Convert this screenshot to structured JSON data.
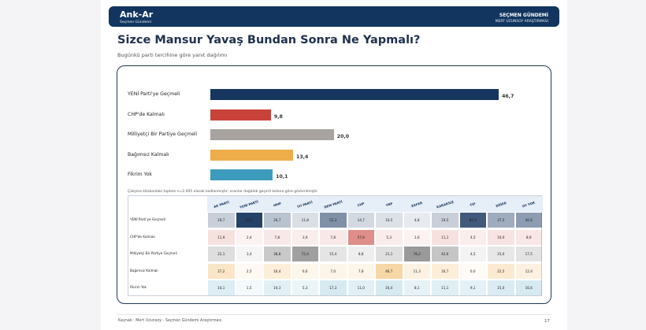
{
  "header": {
    "brand": "Ank-Ar",
    "brand_sub": "Seçmen Gündemi",
    "right_title": "SEÇMEN GÜNDEMİ",
    "right_sub": "MERT UZUNSOY ARAŞTIRMASI"
  },
  "title": "Sizce Mansur Yavaş Bundan Sonra Ne Yapmalı?",
  "subtitle": "Bugünkü parti tercihine göre yanıt dağılımı",
  "note": "Çalışma kitabındaki toplam n=2.005 olarak kodlanmıştır; oranlar dağıtıldı geçerli kolona göre gösterilmiştir.",
  "footer": {
    "source": "Kaynak : Mert Uzunsoy - Seçmen Gündemi Araştırması",
    "page": "17"
  },
  "colors": {
    "header": "#123560",
    "bar_yeni": "#17365f",
    "bar_chp": "#c9423a",
    "bar_milliyetci": "#a8a39e",
    "bar_bagimsiz": "#efad4a",
    "bar_fikrim": "#3d9bbd"
  },
  "chart_data": [
    {
      "type": "bar",
      "orientation": "horizontal",
      "categories": [
        "YENİ Parti'ye Geçmeli",
        "CHP'de Kalmalı",
        "Milliyetçi Bir Partiye Geçmeli",
        "Bağımsız Kalmalı",
        "Fikrim Yok"
      ],
      "values": [
        46.7,
        9.8,
        20.0,
        13.4,
        10.1
      ],
      "value_labels": [
        "46,7",
        "9,8",
        "20,0",
        "13,4",
        "10,1"
      ],
      "colors": [
        "#17365f",
        "#c9423a",
        "#a8a39e",
        "#efad4a",
        "#3d9bbd"
      ],
      "xlim": [
        0,
        50
      ]
    },
    {
      "type": "heatmap",
      "columns": [
        "AK PARTİ",
        "YENİ PARTİ",
        "MHP",
        "İYİ PARTİ",
        "DEM PARTİ",
        "CHP",
        "YRP",
        "ZAFER",
        "KARARSIZ",
        "TİP",
        "DİĞER",
        "OY YOK"
      ],
      "rows": [
        {
          "label": "YENİ Parti'ye Geçmeli",
          "color": "#17365f",
          "values": [
            "19,7",
            "93,2",
            "26,7",
            "11,8",
            "52,3",
            "14,7",
            "10,5",
            "4,8",
            "19,5",
            "81,0",
            "37,5",
            "46,6"
          ]
        },
        {
          "label": "CHP'de Kalmalı",
          "color": "#c9423a",
          "values": [
            "11,9",
            "2,4",
            "7,8",
            "3,9",
            "7,8",
            "57,6",
            "5,3",
            "1,6",
            "11,1",
            "4,5",
            "10,0",
            "8,9"
          ]
        },
        {
          "label": "Milliyetçi Bir Partiye Geçmeli",
          "color": "#7f7f7f",
          "values": [
            "22,1",
            "3,4",
            "38,8",
            "72,4",
            "15,4",
            "8,8",
            "21,1",
            "78,2",
            "42,6",
            "4,5",
            "15,0",
            "17,5"
          ]
        },
        {
          "label": "Bağımsız Kalmalı",
          "color": "#efad4a",
          "values": [
            "27,2",
            "2,5",
            "16,4",
            "6,6",
            "7,0",
            "7,8",
            "46,7",
            "11,3",
            "16,7",
            "0,0",
            "22,5",
            "12,4"
          ]
        },
        {
          "label": "Fikrim Yok",
          "color": "#3d9bbd",
          "values": [
            "14,1",
            "1,5",
            "10,3",
            "5,3",
            "17,3",
            "11,0",
            "16,4",
            "8,1",
            "11,1",
            "9,1",
            "15,0",
            "16,6"
          ]
        }
      ]
    }
  ]
}
